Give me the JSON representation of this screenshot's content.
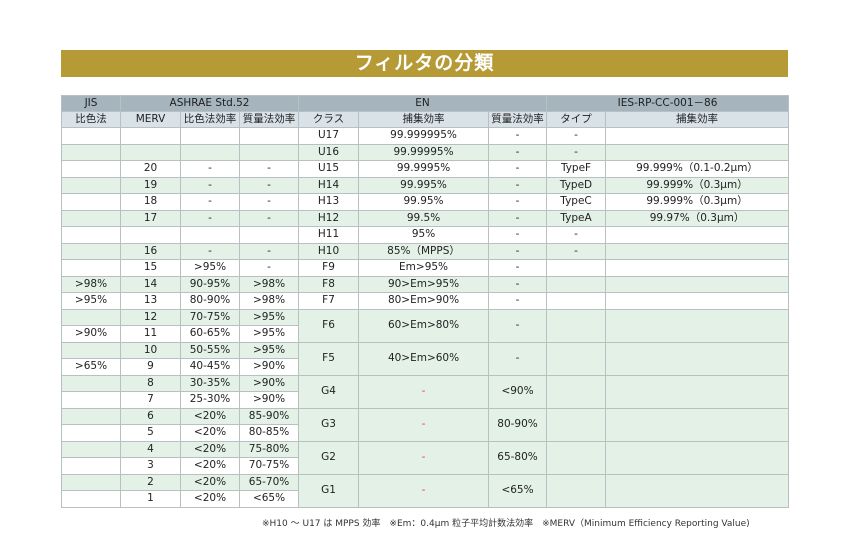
{
  "title": "フィルタの分類",
  "headers": {
    "row1": [
      "JIS",
      "ASHRAE Std.52",
      "EN",
      "IES-RP-CC-001－86"
    ],
    "row2": [
      "比色法",
      "MERV",
      "比色法効率",
      "質量法効率",
      "クラス",
      "捕集効率",
      "質量法効率",
      "タイプ",
      "捕集効率"
    ]
  },
  "rows": [
    [
      "",
      "",
      "",
      "",
      "U17",
      "99.999995%",
      "-",
      "-",
      ""
    ],
    [
      "",
      "",
      "",
      "",
      "U16",
      "99.99995%",
      "-",
      "-",
      ""
    ],
    [
      "",
      "20",
      "-",
      "-",
      "U15",
      "99.9995%",
      "-",
      "TypeF",
      "99.999%（0.1-0.2μm）"
    ],
    [
      "",
      "19",
      "-",
      "-",
      "H14",
      "99.995%",
      "-",
      "TypeD",
      "99.999%（0.3μm）"
    ],
    [
      "",
      "18",
      "-",
      "-",
      "H13",
      "99.95%",
      "-",
      "TypeC",
      "99.999%（0.3μm）"
    ],
    [
      "",
      "17",
      "-",
      "-",
      "H12",
      "99.5%",
      "-",
      "TypeA",
      "99.97%（0.3μm）"
    ],
    [
      "",
      "",
      "",
      "",
      "H11",
      "95%",
      "-",
      "-",
      ""
    ],
    [
      "",
      "16",
      "-",
      "-",
      "H10",
      "85%（MPPS）",
      "-",
      "-",
      ""
    ],
    [
      "",
      "15",
      ">95%",
      "-",
      "F9",
      "Em>95%",
      "-",
      "",
      ""
    ],
    [
      ">98%",
      "14",
      "90-95%",
      ">98%",
      "F8",
      "90>Em>95%",
      "-",
      "",
      ""
    ],
    [
      ">95%",
      "13",
      "80-90%",
      ">98%",
      "F7",
      "80>Em>90%",
      "-",
      "",
      ""
    ],
    [
      "",
      "12",
      "70-75%",
      ">95%",
      "F6",
      "60>Em>80%",
      "-",
      "",
      ""
    ],
    [
      ">90%",
      "11",
      "60-65%",
      ">95%"
    ],
    [
      "",
      "10",
      "50-55%",
      ">95%",
      "F5",
      "40>Em>60%",
      "-",
      "",
      ""
    ],
    [
      ">65%",
      "9",
      "40-45%",
      ">90%"
    ],
    [
      "",
      "8",
      "30-35%",
      ">90%",
      "G4",
      "-",
      "<90%",
      "",
      ""
    ],
    [
      "",
      "7",
      "25-30%",
      ">90%"
    ],
    [
      "",
      "6",
      "<20%",
      "85-90%",
      "G3",
      "-",
      "80-90%",
      "",
      ""
    ],
    [
      "",
      "5",
      "<20%",
      "80-85%"
    ],
    [
      "",
      "4",
      "<20%",
      "75-80%",
      "G2",
      "-",
      "65-80%",
      "",
      ""
    ],
    [
      "",
      "3",
      "<20%",
      "70-75%"
    ],
    [
      "",
      "2",
      "<20%",
      "65-70%",
      "G1",
      "-",
      "<65%",
      "",
      ""
    ],
    [
      "",
      "1",
      "<20%",
      "<65%"
    ]
  ],
  "footnote": "※H10 ～ U17 は MPPS 効率　※Em：0.4μm 粒子平均計数法効率　※MERV（Minimum Efficiency Reporting Value)"
}
